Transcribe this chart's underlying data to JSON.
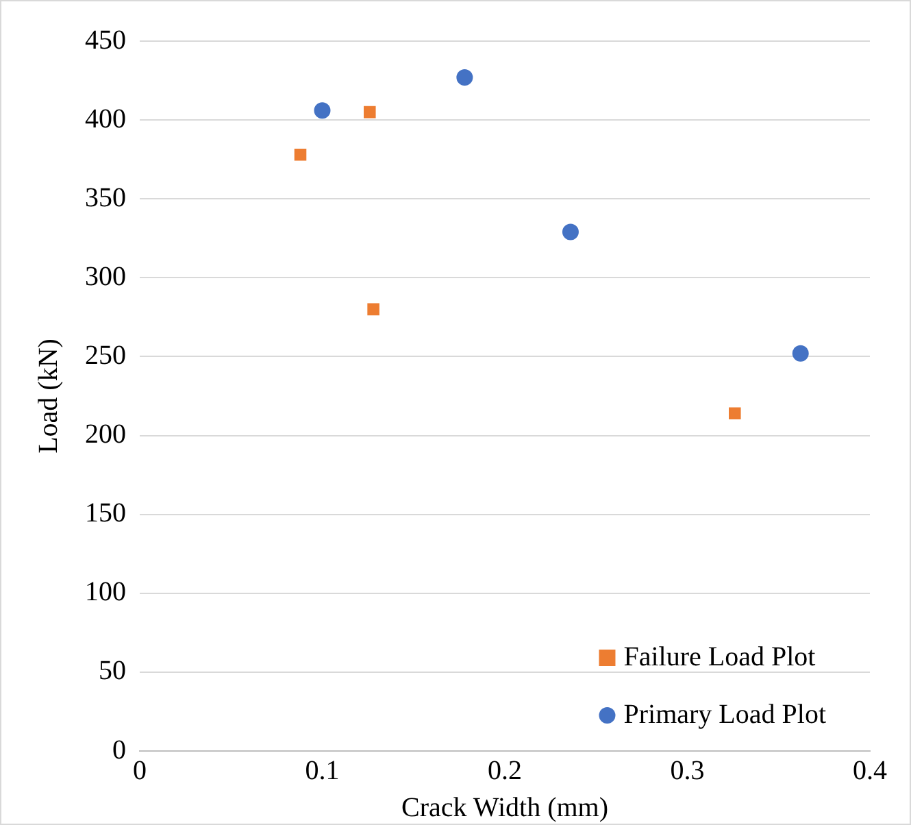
{
  "chart_data": {
    "type": "scatter",
    "xlabel": "Crack Width (mm)",
    "ylabel": "Load (kN)",
    "xlim": [
      0,
      0.4
    ],
    "xticks": [
      0,
      0.1,
      0.2,
      0.3,
      0.4
    ],
    "ylim": [
      0,
      450
    ],
    "yticks": [
      0,
      50,
      100,
      150,
      200,
      250,
      300,
      350,
      400,
      450
    ],
    "grid": "y",
    "legend": "bottom right",
    "series": [
      {
        "name": "Failure Load Plot",
        "color": "#ed7d31",
        "marker": "square",
        "x": [
          0.088,
          0.126,
          0.128,
          0.326
        ],
        "values": [
          378,
          405,
          280,
          214
        ]
      },
      {
        "name": "Primary Load Plot",
        "color": "#4472c4",
        "marker": "circle",
        "x": [
          0.1,
          0.178,
          0.236,
          0.362
        ],
        "values": [
          406,
          427,
          329,
          252
        ]
      }
    ]
  }
}
